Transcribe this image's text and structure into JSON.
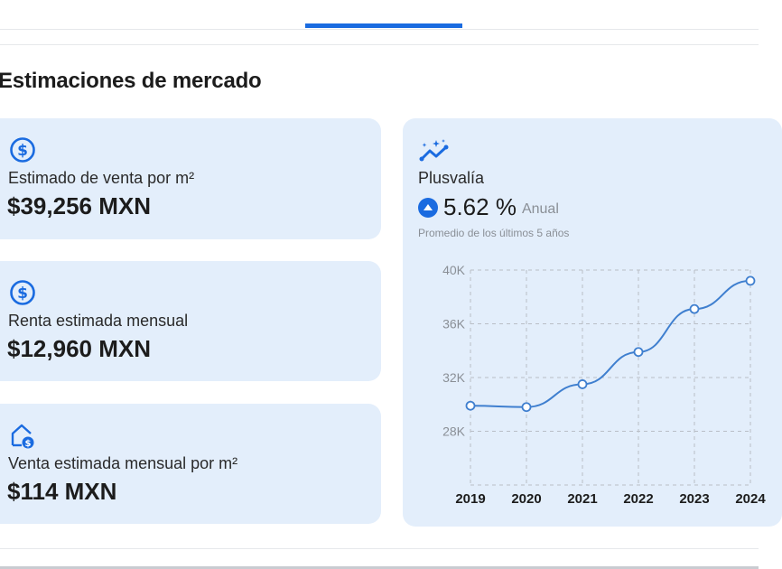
{
  "section_title": "Estimaciones de mercado",
  "cards": [
    {
      "icon": "dollar-circle-icon",
      "label": "Estimado de venta por m²",
      "value": "$39,256 MXN"
    },
    {
      "icon": "dollar-circle-icon",
      "label": "Renta estimada mensual",
      "value": "$12,960 MXN"
    },
    {
      "icon": "house-dollar-icon",
      "label": "Venta estimada mensual por m²",
      "value": "$114 MXN"
    }
  ],
  "plusvalia": {
    "icon": "sparkle-trend-icon",
    "title": "Plusvalía",
    "percent": "5.62 %",
    "period": "Anual",
    "note": "Promedio de los últimos 5 años"
  },
  "colors": {
    "accent": "#1a6be0",
    "card_bg": "#e3eefb",
    "line": "#3f7fcf"
  },
  "chart_data": {
    "type": "line",
    "categories": [
      "2019",
      "2020",
      "2021",
      "2022",
      "2023",
      "2024"
    ],
    "values": [
      29900,
      29800,
      31500,
      33900,
      37100,
      39200
    ],
    "y_ticks": [
      "28K",
      "32K",
      "36K",
      "40K"
    ],
    "ylim": [
      24000,
      40000
    ],
    "grid": true
  }
}
